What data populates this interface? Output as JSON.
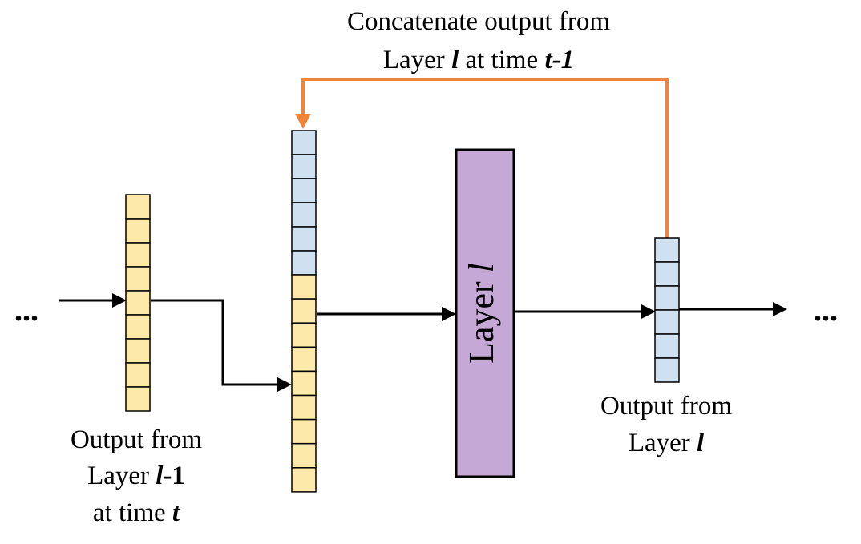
{
  "colors": {
    "yellow_cell": "#fde9a9",
    "blue_cell": "#cfe0f1",
    "layer_fill": "#c6a8d6",
    "feedback_arrow": "#f0843a",
    "line": "#000000"
  },
  "top_label": {
    "line1": "Concatenate output from",
    "line2_a": "Layer ",
    "line2_l": "l",
    "line2_b": " at time ",
    "line2_t": "t-1"
  },
  "layer_block": {
    "label_text": "Layer ",
    "label_var": "l"
  },
  "left_input_label": {
    "line1": "Output from",
    "line2_a": "Layer ",
    "line2_l": "l",
    "line2_b": "-1",
    "line3_a": "at time ",
    "line3_t": "t"
  },
  "right_output_label": {
    "line1": "Output from",
    "line2_a": "Layer ",
    "line2_l": "l"
  },
  "ellipsis_left": "...",
  "ellipsis_right": "...",
  "vectors": {
    "input_cells": 9,
    "concat_blue_cells": 6,
    "concat_yellow_cells": 9,
    "output_cells": 6
  }
}
